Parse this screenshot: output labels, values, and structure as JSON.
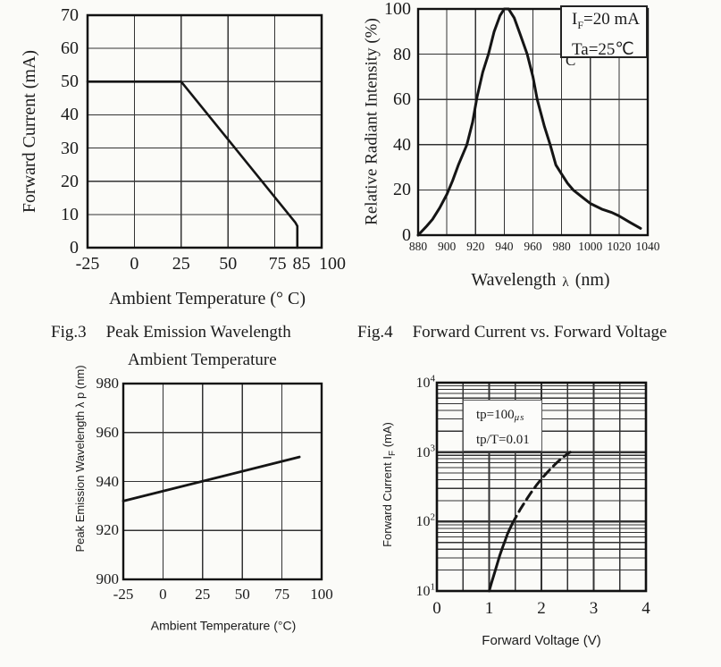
{
  "page": {
    "background": "#fbfbf8",
    "ink": "#1b1b1b",
    "grid_color": "#333333",
    "curve_color": "#151515"
  },
  "figures": {
    "fig3": {
      "label": "Fig.3",
      "title1": "Peak Emission Wavelength",
      "title2": "Ambient Temperature"
    },
    "fig4": {
      "label": "Fig.4",
      "title": "Forward Current vs. Forward Voltage"
    },
    "legend_artifact": "C"
  },
  "chart_data": [
    {
      "id": "derating",
      "type": "line",
      "xlabel": "Ambient Temperature (° C)",
      "ylabel": "Forward Current (mA)",
      "xlim": [
        -25,
        100
      ],
      "ylim": [
        0,
        70
      ],
      "x_ticks": [
        -25,
        0,
        25,
        50,
        75,
        85,
        100
      ],
      "x_grid": [
        0,
        25,
        50,
        75
      ],
      "y_ticks": [
        0,
        10,
        20,
        30,
        40,
        50,
        60,
        70
      ],
      "y_grid": [
        10,
        20,
        30,
        40,
        50,
        60
      ],
      "grid": true,
      "series": [
        {
          "name": "max-forward-current",
          "dash": false,
          "points": [
            [
              -25,
              50
            ],
            [
              25,
              50
            ],
            [
              86,
              7.5
            ],
            [
              87,
              6.5
            ],
            [
              87,
              0
            ]
          ]
        }
      ]
    },
    {
      "id": "spectrum",
      "type": "line",
      "xlabel_pre": "Wavelength",
      "xlabel_sym": "λ",
      "xlabel_post": "(nm)",
      "ylabel": "Relative Radiant Intensity (%)",
      "xlim": [
        880,
        1040
      ],
      "ylim": [
        0,
        100
      ],
      "x_ticks": [
        880,
        900,
        920,
        940,
        960,
        980,
        1000,
        1020,
        1040
      ],
      "x_grid": [
        900,
        920,
        940,
        960,
        980,
        1000,
        1020
      ],
      "y_ticks": [
        0,
        20,
        40,
        60,
        80,
        100
      ],
      "y_grid": [
        20,
        40,
        60,
        80
      ],
      "grid": true,
      "legend": {
        "line1_pre": "I",
        "line1_sub": "F",
        "line1_post": "=20 mA",
        "line2": "Ta=25℃",
        "position": "top-right"
      },
      "series": [
        {
          "name": "relative-radiant-intensity",
          "dash": false,
          "points": [
            [
              880,
              0
            ],
            [
              886,
              4
            ],
            [
              890,
              7
            ],
            [
              895,
              12
            ],
            [
              900,
              18
            ],
            [
              904,
              24
            ],
            [
              908,
              31
            ],
            [
              914,
              40
            ],
            [
              918,
              50
            ],
            [
              921,
              61
            ],
            [
              925,
              72
            ],
            [
              929,
              80
            ],
            [
              933,
              90
            ],
            [
              937,
              97
            ],
            [
              940,
              100
            ],
            [
              943,
              100
            ],
            [
              947,
              96
            ],
            [
              951,
              89
            ],
            [
              956,
              80
            ],
            [
              960,
              70
            ],
            [
              963,
              60
            ],
            [
              968,
              48
            ],
            [
              972,
              40
            ],
            [
              976,
              31
            ],
            [
              980,
              27
            ],
            [
              984,
              23
            ],
            [
              988,
              20
            ],
            [
              995,
              16.5
            ],
            [
              1000,
              14
            ],
            [
              1008,
              11.5
            ],
            [
              1015,
              10
            ],
            [
              1020,
              8.5
            ],
            [
              1028,
              5.5
            ],
            [
              1035,
              3
            ]
          ]
        }
      ]
    },
    {
      "id": "peak-wavelength",
      "type": "line",
      "xlabel": "Ambient Temperature (°C)",
      "ylabel": "Peak Emission Wavelength λ p (nm)",
      "xlim": [
        -25,
        100
      ],
      "ylim": [
        900,
        980
      ],
      "x_ticks": [
        -25,
        0,
        25,
        50,
        75,
        100
      ],
      "x_grid": [
        0,
        25,
        50,
        75
      ],
      "y_ticks": [
        900,
        920,
        940,
        960,
        980
      ],
      "y_grid": [
        920,
        940,
        960
      ],
      "grid": true,
      "series": [
        {
          "name": "peak-emission-wavelength",
          "dash": false,
          "points": [
            [
              -25,
              932
            ],
            [
              86,
              950
            ]
          ]
        }
      ]
    },
    {
      "id": "vi-curve",
      "type": "line",
      "xlabel": "Forward Voltage (V)",
      "ylabel_pre": "Forward Current I",
      "ylabel_sub": "F",
      "ylabel_post": " (mA)",
      "xlim": [
        0,
        4
      ],
      "ylim": [
        10,
        10000
      ],
      "y_scale": "log",
      "x_ticks": [
        0,
        1,
        2,
        3,
        4
      ],
      "x_grid_major": [
        1,
        2,
        3
      ],
      "x_grid_minor": [
        0.5,
        1.5,
        2.5,
        3.5
      ],
      "y_major": [
        100,
        1000
      ],
      "grid": true,
      "annotation": {
        "line1_pre": "tp=100",
        "line1_sub": "μs",
        "line2": "tp/T=0.01"
      },
      "series": [
        {
          "name": "vf-if-solid",
          "dash": false,
          "points": [
            [
              1.0,
              10
            ],
            [
              1.05,
              13.5
            ],
            [
              1.1,
              18
            ],
            [
              1.15,
              24
            ],
            [
              1.2,
              32
            ],
            [
              1.25,
              41
            ],
            [
              1.3,
              52
            ],
            [
              1.35,
              66
            ],
            [
              1.4,
              80
            ],
            [
              1.44,
              92
            ]
          ]
        },
        {
          "name": "vf-if-dashed",
          "dash": true,
          "points": [
            [
              1.44,
              92
            ],
            [
              1.5,
              112
            ],
            [
              1.6,
              152
            ],
            [
              1.7,
              200
            ],
            [
              1.8,
              260
            ],
            [
              1.9,
              330
            ],
            [
              2.0,
              410
            ],
            [
              2.1,
              500
            ],
            [
              2.2,
              600
            ],
            [
              2.3,
              710
            ],
            [
              2.4,
              830
            ],
            [
              2.5,
              950
            ],
            [
              2.55,
              1000
            ]
          ]
        }
      ]
    }
  ]
}
